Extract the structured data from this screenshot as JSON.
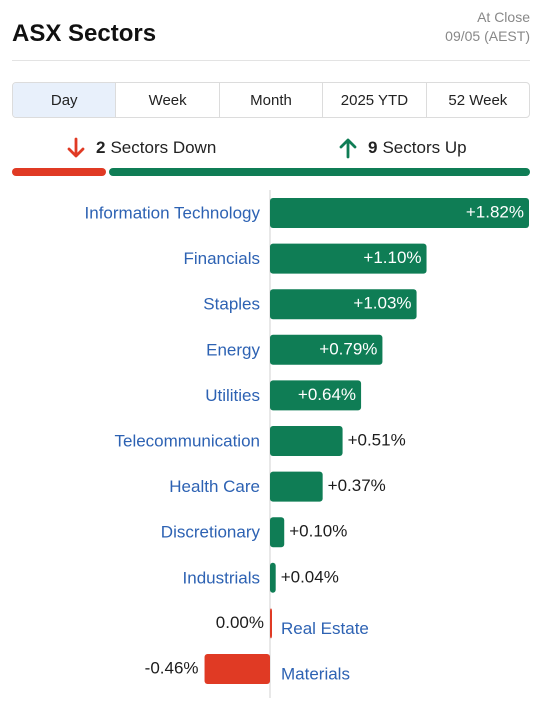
{
  "header": {
    "title": "ASX Sectors",
    "as_of_label": "At Close",
    "as_of_date": "09/05 (AEST)"
  },
  "tabs": [
    {
      "label": "Day",
      "active": true
    },
    {
      "label": "Week",
      "active": false
    },
    {
      "label": "Month",
      "active": false
    },
    {
      "label": "2025 YTD",
      "active": false
    },
    {
      "label": "52 Week",
      "active": false
    }
  ],
  "summary": {
    "down_count": "2",
    "down_text": "Sectors Down",
    "up_count": "9",
    "up_text": "Sectors Up",
    "down_fraction": 0.1818,
    "up_fraction": 0.8182
  },
  "colors": {
    "up": "#0f7d55",
    "down": "#e03a24",
    "label": "#2d62b3",
    "axis": "#d0d0d0"
  },
  "chart_data": {
    "type": "bar",
    "orientation": "horizontal",
    "unit": "%",
    "categories": [
      "Information Technology",
      "Financials",
      "Staples",
      "Energy",
      "Utilities",
      "Telecommunication",
      "Health Care",
      "Discretionary",
      "Industrials",
      "Real Estate",
      "Materials"
    ],
    "values": [
      1.82,
      1.1,
      1.03,
      0.79,
      0.64,
      0.51,
      0.37,
      0.1,
      0.04,
      0.0,
      -0.46
    ],
    "value_labels": [
      "+1.82%",
      "+1.10%",
      "+1.03%",
      "+0.79%",
      "+0.64%",
      "+0.51%",
      "+0.37%",
      "+0.10%",
      "+0.04%",
      "0.00%",
      "-0.46%"
    ],
    "xlim": [
      -0.92,
      1.82
    ]
  }
}
